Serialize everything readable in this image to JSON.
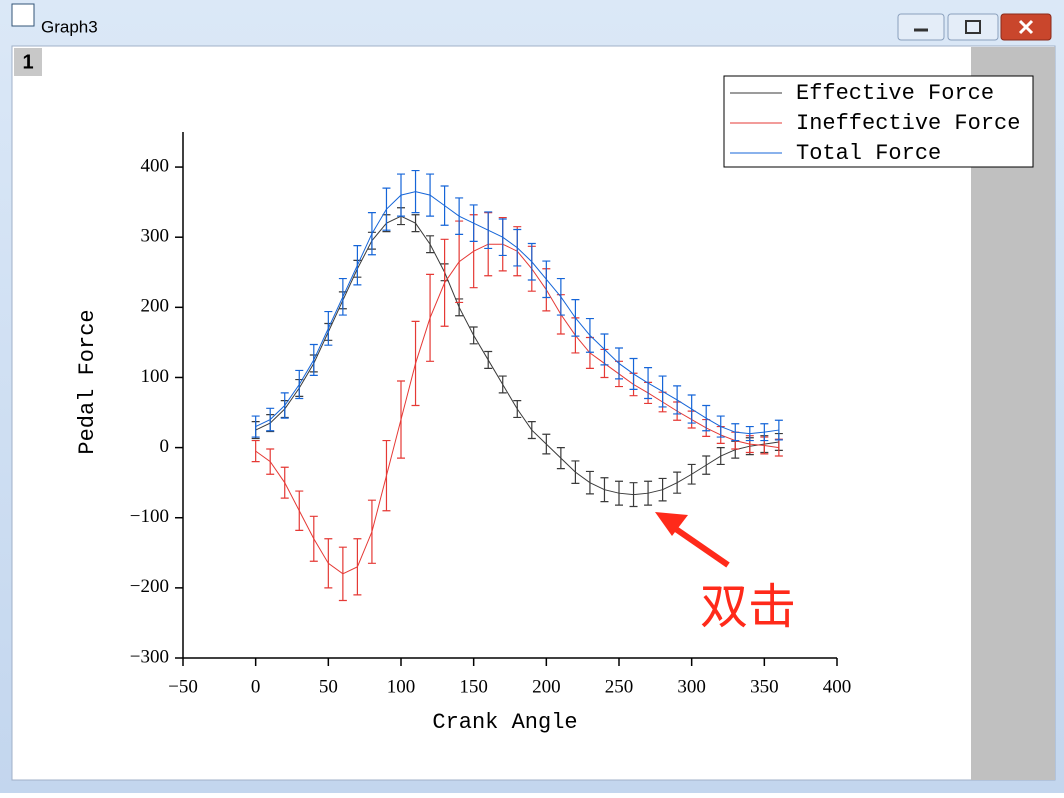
{
  "window": {
    "title": "Graph3",
    "layer": "1"
  },
  "annotation": "双击",
  "chart_data": {
    "type": "line",
    "xlabel": "Crank Angle",
    "ylabel": "Pedal Force",
    "xlim": [
      -50,
      400
    ],
    "ylim": [
      -300,
      450
    ],
    "xticks": [
      {
        "value": -50,
        "label": "−50"
      },
      0,
      50,
      100,
      150,
      200,
      250,
      300,
      350,
      400
    ],
    "yticks": [
      {
        "value": -300,
        "label": "−300"
      },
      {
        "value": -200,
        "label": "−200"
      },
      {
        "value": -100,
        "label": "−100"
      },
      0,
      100,
      200,
      300,
      400
    ],
    "legend": "upper right",
    "x": [
      0,
      10,
      20,
      30,
      40,
      50,
      60,
      70,
      80,
      90,
      100,
      110,
      120,
      130,
      140,
      150,
      160,
      170,
      180,
      190,
      200,
      210,
      220,
      230,
      240,
      250,
      260,
      270,
      280,
      290,
      300,
      310,
      320,
      330,
      340,
      350,
      360
    ],
    "series": [
      {
        "name": "Effective Force",
        "color": "#3a3a3a",
        "values": [
          25,
          35,
          55,
          85,
          120,
          165,
          210,
          255,
          295,
          320,
          330,
          320,
          290,
          250,
          200,
          160,
          125,
          90,
          55,
          25,
          5,
          -15,
          -35,
          -50,
          -60,
          -65,
          -67,
          -65,
          -60,
          -50,
          -38,
          -25,
          -12,
          -3,
          2,
          5,
          8
        ],
        "errors": [
          12,
          12,
          12,
          12,
          12,
          12,
          12,
          12,
          12,
          12,
          12,
          12,
          12,
          12,
          12,
          12,
          12,
          12,
          12,
          12,
          14,
          15,
          16,
          16,
          17,
          17,
          17,
          17,
          16,
          15,
          14,
          13,
          12,
          12,
          12,
          12,
          12
        ]
      },
      {
        "name": "Ineffective Force",
        "color": "#e53935",
        "values": [
          -5,
          -20,
          -50,
          -90,
          -130,
          -165,
          -180,
          -170,
          -120,
          -40,
          40,
          120,
          185,
          235,
          265,
          280,
          290,
          290,
          280,
          255,
          225,
          190,
          160,
          135,
          120,
          105,
          90,
          78,
          65,
          52,
          40,
          28,
          18,
          10,
          5,
          3,
          0
        ],
        "errors": [
          15,
          18,
          22,
          28,
          32,
          35,
          38,
          40,
          45,
          50,
          55,
          60,
          62,
          62,
          58,
          52,
          45,
          38,
          35,
          32,
          30,
          28,
          25,
          22,
          20,
          18,
          16,
          15,
          14,
          13,
          12,
          12,
          12,
          12,
          12,
          12,
          12
        ]
      },
      {
        "name": "Total Force",
        "color": "#1565d8",
        "values": [
          30,
          40,
          60,
          90,
          125,
          170,
          215,
          260,
          305,
          340,
          360,
          365,
          360,
          345,
          330,
          320,
          310,
          300,
          285,
          265,
          240,
          215,
          185,
          160,
          140,
          120,
          105,
          92,
          80,
          68,
          55,
          42,
          30,
          22,
          20,
          22,
          25
        ],
        "errors": [
          15,
          16,
          18,
          20,
          22,
          24,
          26,
          28,
          30,
          30,
          30,
          30,
          30,
          28,
          26,
          26,
          26,
          26,
          26,
          26,
          26,
          26,
          26,
          24,
          22,
          22,
          22,
          22,
          22,
          20,
          20,
          18,
          15,
          12,
          10,
          12,
          14
        ]
      }
    ]
  }
}
